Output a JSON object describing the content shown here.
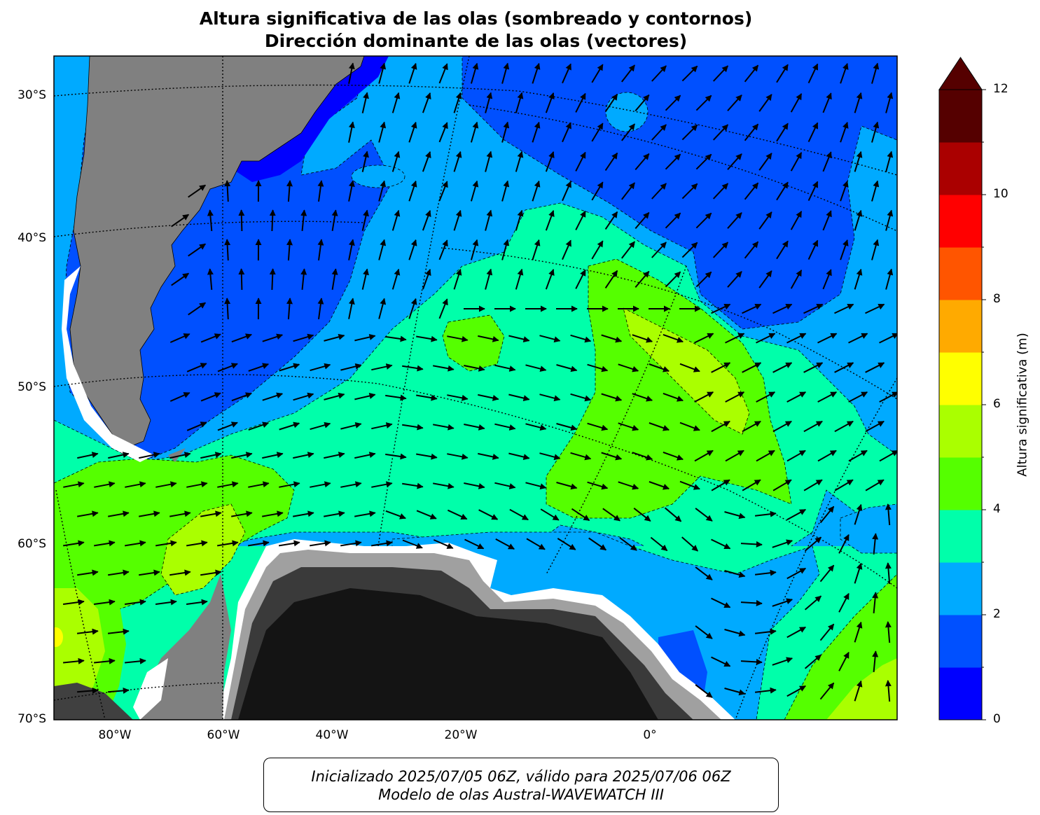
{
  "title": {
    "line1": "Altura significativa de las olas (sombreado y contornos)",
    "line2": "Dirección dominante de las olas (vectores)"
  },
  "map": {
    "lat_labels": [
      "30°S",
      "40°S",
      "50°S",
      "60°S",
      "70°S"
    ],
    "lon_labels": [
      "80°W",
      "60°W",
      "40°W",
      "20°W",
      "0°"
    ],
    "grid": true
  },
  "colorbar": {
    "label": "Altura significativa (m)",
    "tick_labels": [
      "0",
      "2",
      "4",
      "6",
      "8",
      "10",
      "12"
    ],
    "levels": [
      0,
      1,
      2,
      3,
      4,
      5,
      6,
      7,
      8,
      9,
      10,
      11,
      12
    ],
    "colors": [
      "#0000ff",
      "#0050ff",
      "#00aaff",
      "#00ffaa",
      "#55ff00",
      "#aaff00",
      "#ffff00",
      "#ffaa00",
      "#ff5500",
      "#ff0000",
      "#aa0000",
      "#550000"
    ],
    "extend": "max"
  },
  "footer": {
    "line1": "Inicializado 2025/07/05 06Z, válido para 2025/07/06 06Z",
    "line2": "Modelo de olas Austral-WAVEWATCH III"
  }
}
